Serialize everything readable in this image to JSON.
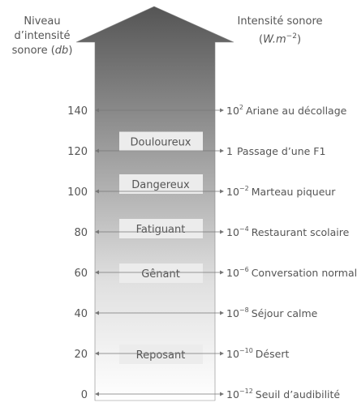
{
  "header": {
    "left_line1": "Niveau d’intensité",
    "left_line2_text": "sonore (",
    "left_line2_unit": "db",
    "left_line2_close": ")",
    "right_line1": "Intensité sonore",
    "right_line2_unit": "W.m",
    "right_line2_exp": "−2"
  },
  "levels": [
    {
      "db": "140",
      "mantissa": "10",
      "exp": "2",
      "desc": "Ariane au décollage"
    },
    {
      "db": "120",
      "mantissa": "1",
      "exp": "",
      "desc": "Passage d’une F1"
    },
    {
      "db": "100",
      "mantissa": "10",
      "exp": "−2",
      "desc": "Marteau piqueur"
    },
    {
      "db": "80",
      "mantissa": "10",
      "exp": "−4",
      "desc": "Restaurant scolaire"
    },
    {
      "db": "60",
      "mantissa": "10",
      "exp": "−6",
      "desc": "Conversation normale"
    },
    {
      "db": "40",
      "mantissa": "10",
      "exp": "−8",
      "desc": "Séjour calme"
    },
    {
      "db": "20",
      "mantissa": "10",
      "exp": "−10",
      "desc": "Désert"
    },
    {
      "db": "0",
      "mantissa": "10",
      "exp": "−12",
      "desc": "Seuil d’audibilité"
    }
  ],
  "zones": [
    {
      "label": "Douloureux",
      "at_db": 125
    },
    {
      "label": "Dangereux",
      "at_db": 104
    },
    {
      "label": "Fatiguant",
      "at_db": 82
    },
    {
      "label": "Gênant",
      "at_db": 60
    },
    {
      "label": "Reposant",
      "at_db": 20
    }
  ]
}
